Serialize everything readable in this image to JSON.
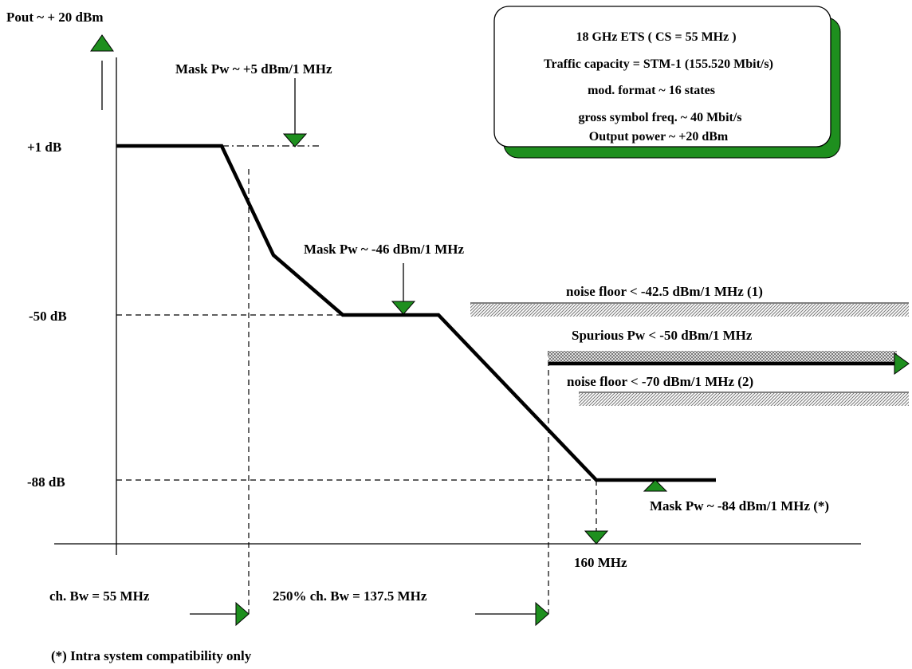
{
  "colors": {
    "background": "#ffffff",
    "line": "#000000",
    "marker_fill": "#1e8f1e",
    "box_shadow": "#1e8f1e",
    "hatch": "#888888"
  },
  "axis": {
    "y_title": "Pout ~ + 20 dBm",
    "levels": {
      "plus1": "+1 dB",
      "minus50": "-50 dB",
      "minus88": "-88 dB"
    },
    "x_point": "160 MHz"
  },
  "info_box": {
    "lines": [
      "18 GHz ETS ( CS = 55 MHz )",
      "Traffic capacity = STM-1 (155.520 Mbit/s)",
      "mod. format ~ 16 states",
      "gross symbol freq. ~ 40 Mbit/s",
      "Output power ~ +20 dBm"
    ]
  },
  "annotations": {
    "mask_pw_1": "Mask Pw ~ +5 dBm/1 MHz",
    "mask_pw_2": "Mask Pw ~ -46 dBm/1 MHz",
    "mask_pw_3": "Mask Pw ~ -84 dBm/1 MHz (*)",
    "noise_floor_1": "noise floor < -42.5 dBm/1 MHz (1)",
    "spurious": "Spurious Pw < -50 dBm/1 MHz",
    "noise_floor_2": "noise floor < -70 dBm/1 MHz (2)"
  },
  "bandwidths": {
    "ch_bw": "ch. Bw = 55 MHz",
    "bw_250": "250% ch. Bw = 137.5 MHz"
  },
  "footnote": "(*) Intra system compatibility only"
}
